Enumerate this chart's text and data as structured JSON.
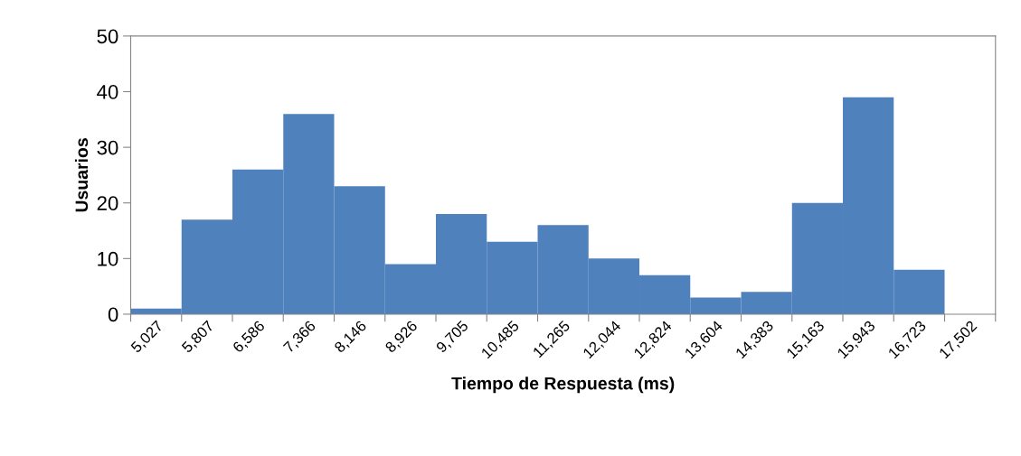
{
  "chart_data": {
    "type": "bar",
    "xlabel": "Tiempo de Respuesta (ms)",
    "ylabel": "Usuarios",
    "categories": [
      "5,027",
      "5,807",
      "6,586",
      "7,366",
      "8,146",
      "8,926",
      "9,705",
      "10,485",
      "11,265",
      "12,044",
      "12,824",
      "13,604",
      "14,383",
      "15,163",
      "15,943",
      "16,723",
      "17,502"
    ],
    "values": [
      1,
      17,
      26,
      36,
      23,
      9,
      18,
      13,
      16,
      10,
      7,
      3,
      4,
      20,
      39,
      8,
      0
    ],
    "color": "#4f81bd",
    "ylim": [
      0,
      50
    ],
    "yticks": [
      0,
      10,
      20,
      30,
      40,
      50
    ],
    "grid": false,
    "legend": false
  }
}
